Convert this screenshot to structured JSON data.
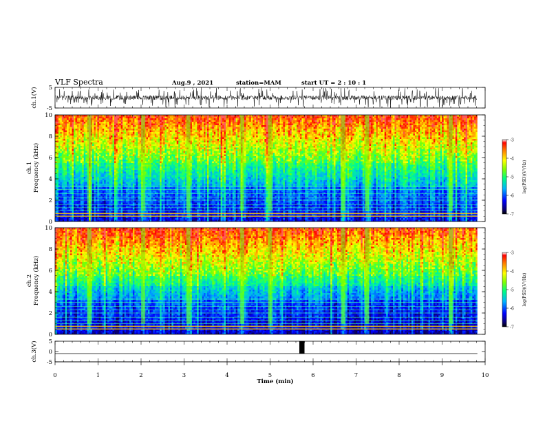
{
  "header": {
    "title": "VLF Spectra",
    "date": "Aug.9 , 2021",
    "station": "station=MAM",
    "start": "start UT = 2 : 10 : 1"
  },
  "chart_data": [
    {
      "type": "line",
      "panel": "ch1-waveform",
      "ylabel": "ch.1(V)",
      "ylim": [
        -5,
        5
      ],
      "yticks": [
        5,
        -5
      ],
      "xlim": [
        0,
        10
      ]
    },
    {
      "type": "heatmap",
      "panel": "ch1-spectrogram",
      "ylabel_top": "ch.1",
      "ylabel": "Frequency (kHz)",
      "ylim": [
        0,
        10
      ],
      "yticks": [
        0,
        2,
        4,
        6,
        8,
        10
      ],
      "xlim": [
        0,
        10
      ],
      "colorbar": {
        "label": "log(PSD)(V²/Hz)",
        "range": [
          -7,
          -3
        ],
        "ticks": [
          -3,
          -4,
          -5,
          -6,
          -7
        ]
      },
      "events_min": [
        0.8,
        2.05,
        3.1,
        4.35,
        5.0,
        6.7,
        7.25,
        9.2
      ]
    },
    {
      "type": "heatmap",
      "panel": "ch2-spectrogram",
      "ylabel_top": "ch.2",
      "ylabel": "Frequency (kHz)",
      "ylim": [
        0,
        10
      ],
      "yticks": [
        0,
        2,
        4,
        6,
        8,
        10
      ],
      "xlim": [
        0,
        10
      ],
      "colorbar": {
        "label": "log(PSD)(V²/Hz)",
        "range": [
          -7,
          -3
        ],
        "ticks": [
          -3,
          -4,
          -5,
          -6,
          -7
        ]
      },
      "events_min": [
        0.8,
        2.05,
        3.1,
        4.35,
        5.0,
        6.7,
        7.25,
        9.2
      ]
    },
    {
      "type": "line",
      "panel": "ch3-waveform",
      "ylabel": "ch.3(V)",
      "ylim": [
        -5,
        5
      ],
      "yticks": [
        5,
        0,
        -5
      ],
      "xlim": [
        0,
        10
      ],
      "baseline": -1,
      "pulse": {
        "x_start": 5.68,
        "x_end": 5.8,
        "level": 5
      }
    }
  ],
  "xaxis": {
    "label": "Time (min)",
    "ticks": [
      0,
      1,
      2,
      3,
      4,
      5,
      6,
      7,
      8,
      9,
      10
    ],
    "data_end": 9.82
  }
}
